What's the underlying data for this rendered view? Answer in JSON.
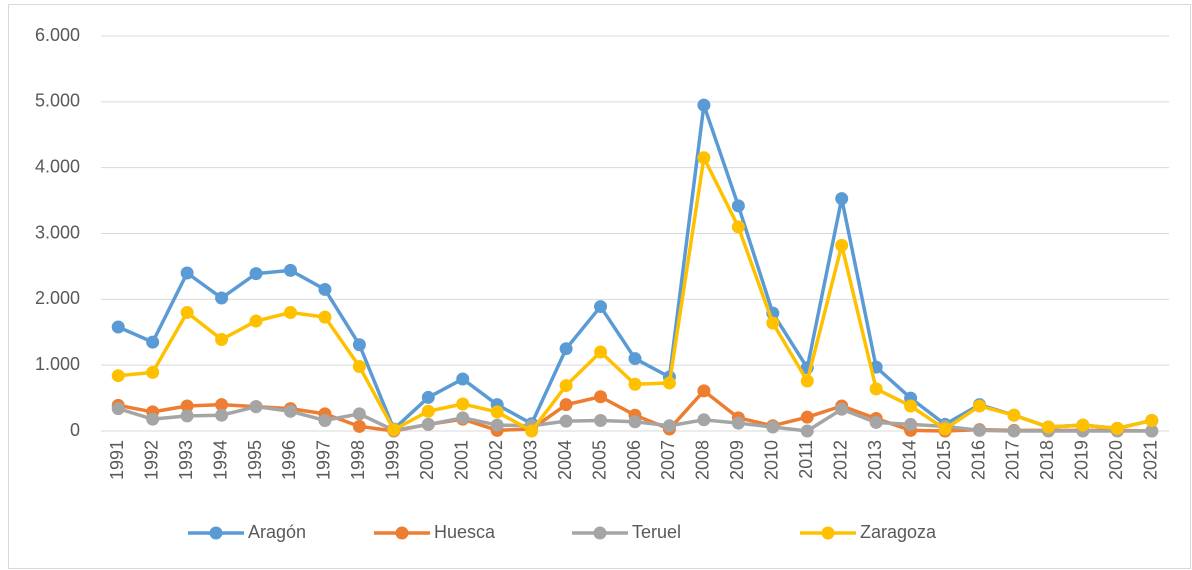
{
  "chart_data": {
    "type": "line",
    "categories": [
      "1991",
      "1992",
      "1993",
      "1994",
      "1995",
      "1996",
      "1997",
      "1998",
      "1999",
      "2000",
      "2001",
      "2002",
      "2003",
      "2004",
      "2005",
      "2006",
      "2007",
      "2008",
      "2009",
      "2010",
      "2011",
      "2012",
      "2013",
      "2014",
      "2015",
      "2016",
      "2017",
      "2018",
      "2019",
      "2020",
      "2021"
    ],
    "series": [
      {
        "name": "Aragón",
        "color": "#5b9bd5",
        "values": [
          1580,
          1350,
          2400,
          2020,
          2390,
          2440,
          2150,
          1310,
          30,
          510,
          790,
          400,
          110,
          1250,
          1890,
          1100,
          820,
          4950,
          3420,
          1790,
          960,
          3530,
          970,
          500,
          100,
          400,
          240,
          60,
          90,
          40,
          160
        ]
      },
      {
        "name": "Huesca",
        "color": "#ed7d31",
        "values": [
          390,
          290,
          380,
          400,
          370,
          340,
          260,
          70,
          0,
          100,
          180,
          10,
          30,
          400,
          520,
          240,
          30,
          610,
          200,
          80,
          210,
          380,
          190,
          10,
          0,
          20,
          10,
          10,
          10,
          10,
          0
        ]
      },
      {
        "name": "Teruel",
        "color": "#a5a5a5",
        "values": [
          340,
          180,
          230,
          240,
          370,
          300,
          160,
          260,
          10,
          100,
          200,
          90,
          80,
          150,
          160,
          140,
          80,
          170,
          120,
          60,
          0,
          330,
          130,
          100,
          70,
          10,
          0,
          0,
          0,
          0,
          0
        ]
      },
      {
        "name": "Zaragoza",
        "color": "#ffc000",
        "values": [
          840,
          890,
          1800,
          1390,
          1670,
          1800,
          1730,
          980,
          20,
          300,
          410,
          290,
          0,
          690,
          1200,
          710,
          730,
          4150,
          3100,
          1640,
          760,
          2820,
          640,
          380,
          30,
          380,
          240,
          60,
          90,
          40,
          160
        ]
      }
    ],
    "ylim": [
      0,
      6000
    ],
    "yticks": [
      0,
      {
        "value": 1000,
        "label": "1.000"
      },
      {
        "value": 2000,
        "label": "2.000"
      },
      {
        "value": 3000,
        "label": "3.000"
      },
      {
        "value": 4000,
        "label": "4.000"
      },
      {
        "value": 5000,
        "label": "5.000"
      },
      {
        "value": 6000,
        "label": "6.000"
      }
    ],
    "grid": true,
    "legend": "bottom"
  }
}
